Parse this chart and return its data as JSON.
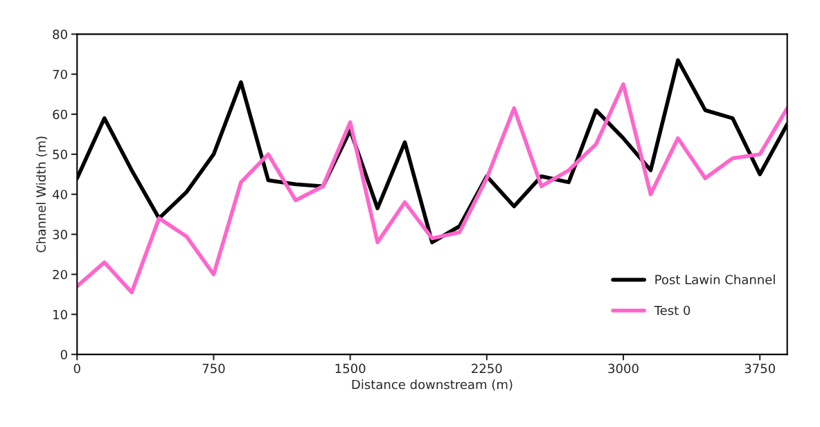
{
  "chart_data": {
    "type": "line",
    "xlabel": "Distance downstream (m)",
    "ylabel": "Channel Width (m)",
    "x": [
      0,
      150,
      300,
      450,
      600,
      750,
      900,
      1050,
      1200,
      1350,
      1500,
      1650,
      1800,
      1950,
      2100,
      2250,
      2400,
      2550,
      2700,
      2850,
      3000,
      3150,
      3300,
      3450,
      3600,
      3750,
      3900
    ],
    "series": [
      {
        "name": "Post Lawin Channel",
        "color": "#000000",
        "values": [
          44,
          59,
          46,
          34,
          40.5,
          50,
          68,
          43.5,
          42.5,
          42,
          56,
          36.5,
          53,
          28,
          32,
          44.5,
          37,
          44.5,
          43,
          61,
          54,
          46,
          73.5,
          61,
          59,
          45,
          57.5
        ]
      },
      {
        "name": "Test 0",
        "color": "#ff66cc",
        "values": [
          17,
          23,
          15.5,
          34,
          29.5,
          20,
          43,
          50,
          38.5,
          42,
          58,
          28,
          38,
          29,
          30.5,
          44,
          61.5,
          42,
          46,
          52.5,
          67.5,
          40,
          54,
          44,
          49,
          50,
          61.5
        ]
      }
    ],
    "xlim": [
      0,
      3900
    ],
    "xticks": [
      0,
      750,
      1500,
      2250,
      3000,
      3750
    ],
    "ylim": [
      0,
      80
    ],
    "yticks": [
      0,
      10,
      20,
      30,
      40,
      50,
      60,
      70,
      80
    ],
    "grid": false,
    "legend": "bottom right",
    "marker": "none",
    "line_style": "solid"
  }
}
